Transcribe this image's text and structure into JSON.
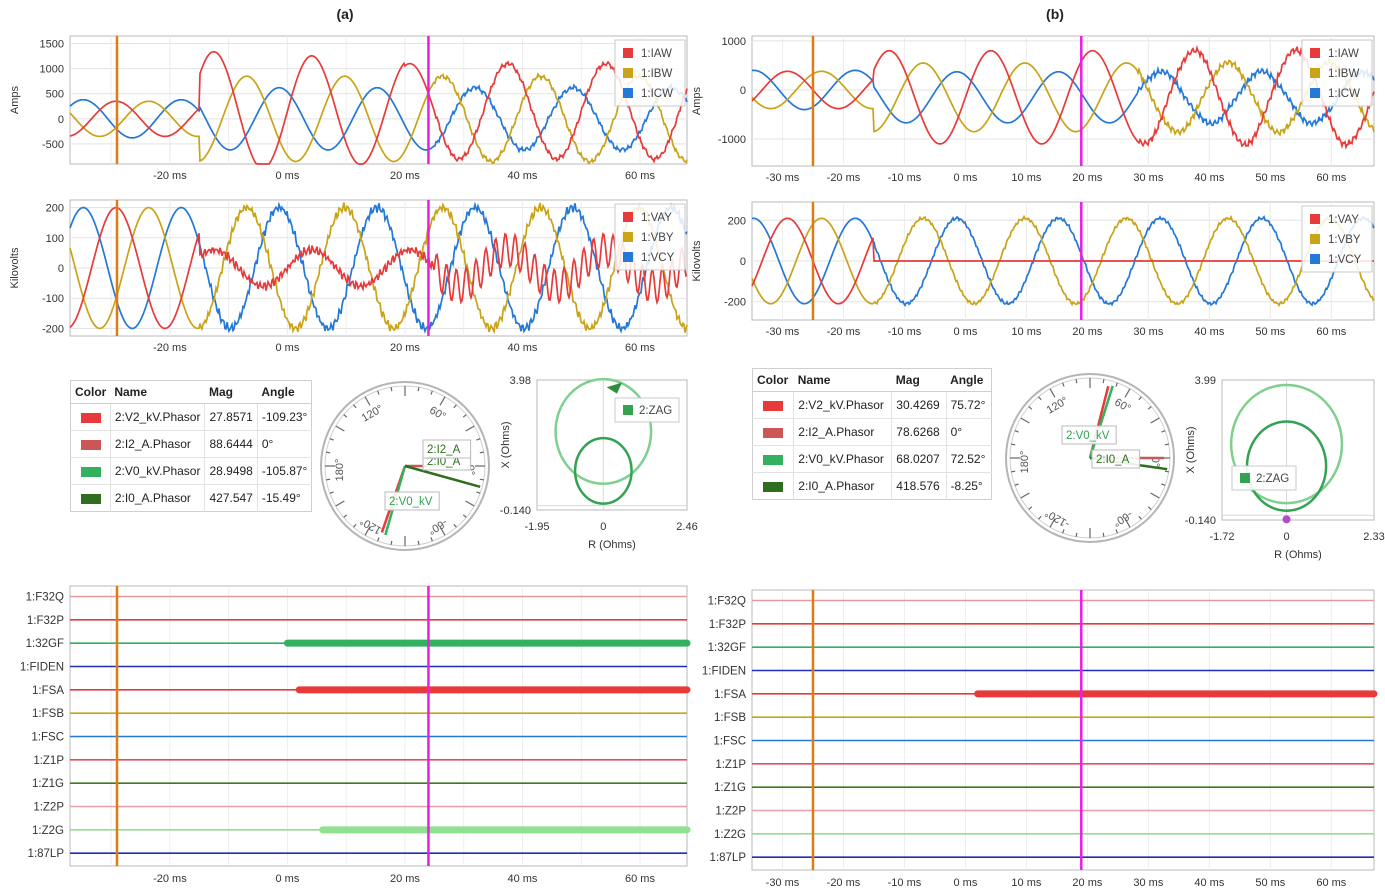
{
  "panels": [
    {
      "title": "(a)",
      "current_chart": {
        "type": "line",
        "ylabel": "Amps",
        "x_ticks": [
          "-20 ms",
          "0 ms",
          "20 ms",
          "40 ms",
          "60 ms"
        ],
        "y_ticks": [
          "1500",
          "1000",
          "500",
          "0",
          "-500"
        ],
        "legend": [
          "1:IAW",
          "1:IBW",
          "1:ICW"
        ],
        "xlim_ms": [
          -37,
          68
        ],
        "ylim": [
          -900,
          1650
        ]
      },
      "voltage_chart": {
        "type": "line",
        "ylabel": "Kilovolts",
        "x_ticks": [
          "-20 ms",
          "0 ms",
          "20 ms",
          "40 ms",
          "60 ms"
        ],
        "y_ticks": [
          "200",
          "100",
          "0",
          "-100",
          "-200"
        ],
        "legend": [
          "1:VAY",
          "1:VBY",
          "1:VCY"
        ],
        "xlim_ms": [
          -37,
          68
        ],
        "ylim": [
          -225,
          225
        ]
      },
      "phasor_table": {
        "headers": [
          "Color",
          "Name",
          "Mag",
          "Angle"
        ],
        "rows": [
          {
            "color": "#e83a3a",
            "name": "2:V2_kV.Phasor",
            "mag": "27.8571",
            "angle": "-109.23°"
          },
          {
            "color": "#cc5555",
            "name": "2:I2_A.Phasor",
            "mag": "88.6444",
            "angle": "0°"
          },
          {
            "color": "#33b15e",
            "name": "2:V0_kV.Phasor",
            "mag": "28.9498",
            "angle": "-105.87°"
          },
          {
            "color": "#2e6e1e",
            "name": "2:I0_A.Phasor",
            "mag": "427.547",
            "angle": "-15.49°"
          }
        ]
      },
      "polar": {
        "angle_labels": [
          "0°",
          "60°",
          "120°",
          "180°",
          "-120°",
          "-60°"
        ],
        "vector_labels": [
          "2:I0_A",
          "2:V0_kV",
          "2:I2_A"
        ]
      },
      "impedance": {
        "type": "scatter",
        "ylabel": "X (Ohms)",
        "xlabel": "R (Ohms)",
        "x_ticks": [
          "-1.95",
          "0",
          "2.46"
        ],
        "y_ticks": [
          "3.98",
          "-0.140"
        ],
        "legend": "2:ZAG",
        "xlim": [
          -1.95,
          2.46
        ],
        "ylim": [
          -0.14,
          3.98
        ],
        "legend_position": "top-right"
      },
      "digital": {
        "channels": [
          {
            "name": "1:F32Q",
            "color": "#e89a9a",
            "on": []
          },
          {
            "name": "1:F32P",
            "color": "#e83a3a",
            "on": []
          },
          {
            "name": "1:32GF",
            "color": "#33b15e",
            "on": [
              [
                0,
                68
              ]
            ]
          },
          {
            "name": "1:FIDEN",
            "color": "#1f2db5",
            "on": []
          },
          {
            "name": "1:FSA",
            "color": "#e83a3a",
            "on": [
              [
                2,
                68
              ]
            ]
          },
          {
            "name": "1:FSB",
            "color": "#c9a318",
            "on": []
          },
          {
            "name": "1:FSC",
            "color": "#2478d6",
            "on": []
          },
          {
            "name": "1:Z1P",
            "color": "#e0525a",
            "on": []
          },
          {
            "name": "1:Z1G",
            "color": "#3d7a1e",
            "on": []
          },
          {
            "name": "1:Z2P",
            "color": "#e8a0a8",
            "on": []
          },
          {
            "name": "1:Z2G",
            "color": "#8fe08f",
            "on": [
              [
                6,
                68
              ]
            ]
          },
          {
            "name": "1:87LP",
            "color": "#1f2db5",
            "on": []
          }
        ],
        "x_ticks": [
          "-20 ms",
          "0 ms",
          "20 ms",
          "40 ms",
          "60 ms"
        ]
      },
      "cursors": {
        "orange_ms": -29,
        "magenta_ms": 24
      }
    },
    {
      "title": "(b)",
      "current_chart": {
        "type": "line",
        "ylabel": "Amps",
        "x_ticks": [
          "-30 ms",
          "-20 ms",
          "-10 ms",
          "0 ms",
          "10 ms",
          "20 ms",
          "30 ms",
          "40 ms",
          "50 ms",
          "60 ms"
        ],
        "y_ticks": [
          "1000",
          "0",
          "-1000"
        ],
        "legend": [
          "1:IAW",
          "1:IBW",
          "1:ICW"
        ],
        "xlim_ms": [
          -35,
          67
        ],
        "ylim": [
          -1550,
          1100
        ]
      },
      "voltage_chart": {
        "type": "line",
        "ylabel": "Kilovolts",
        "x_ticks": [
          "-30 ms",
          "-20 ms",
          "-10 ms",
          "0 ms",
          "10 ms",
          "20 ms",
          "30 ms",
          "40 ms",
          "50 ms",
          "60 ms"
        ],
        "y_ticks": [
          "200",
          "0",
          "-200"
        ],
        "legend": [
          "1:VAY",
          "1:VBY",
          "1:VCY"
        ],
        "xlim_ms": [
          -35,
          67
        ],
        "ylim": [
          -290,
          290
        ]
      },
      "phasor_table": {
        "headers": [
          "Color",
          "Name",
          "Mag",
          "Angle"
        ],
        "rows": [
          {
            "color": "#e83a3a",
            "name": "2:V2_kV.Phasor",
            "mag": "30.4269",
            "angle": "75.72°"
          },
          {
            "color": "#cc5555",
            "name": "2:I2_A.Phasor",
            "mag": "78.6268",
            "angle": "0°"
          },
          {
            "color": "#33b15e",
            "name": "2:V0_kV.Phasor",
            "mag": "68.0207",
            "angle": "72.52°"
          },
          {
            "color": "#2e6e1e",
            "name": "2:I0_A.Phasor",
            "mag": "418.576",
            "angle": "-8.25°"
          }
        ]
      },
      "polar": {
        "angle_labels": [
          "0°",
          "60°",
          "120°",
          "180°",
          "-120°",
          "-60°"
        ],
        "vector_labels": [
          "2:V0_kV",
          "2:I0_A"
        ]
      },
      "impedance": {
        "type": "scatter",
        "ylabel": "X (Ohms)",
        "xlabel": "R (Ohms)",
        "x_ticks": [
          "-1.72",
          "0",
          "2.33"
        ],
        "y_ticks": [
          "3.99",
          "-0.140"
        ],
        "legend": "2:ZAG",
        "xlim": [
          -1.72,
          2.33
        ],
        "ylim": [
          -0.14,
          3.99
        ],
        "legend_position": "bottom-left"
      },
      "digital": {
        "channels": [
          {
            "name": "1:F32Q",
            "color": "#e89a9a",
            "on": []
          },
          {
            "name": "1:F32P",
            "color": "#e83a3a",
            "on": []
          },
          {
            "name": "1:32GF",
            "color": "#33b15e",
            "on": []
          },
          {
            "name": "1:FIDEN",
            "color": "#1f2db5",
            "on": []
          },
          {
            "name": "1:FSA",
            "color": "#e83a3a",
            "on": [
              [
                2,
                67
              ]
            ]
          },
          {
            "name": "1:FSB",
            "color": "#c9a318",
            "on": []
          },
          {
            "name": "1:FSC",
            "color": "#2478d6",
            "on": []
          },
          {
            "name": "1:Z1P",
            "color": "#e0525a",
            "on": []
          },
          {
            "name": "1:Z1G",
            "color": "#3d7a1e",
            "on": []
          },
          {
            "name": "1:Z2P",
            "color": "#e8a0a8",
            "on": []
          },
          {
            "name": "1:Z2G",
            "color": "#8fe08f",
            "on": []
          },
          {
            "name": "1:87LP",
            "color": "#1f2db5",
            "on": []
          }
        ],
        "x_ticks": [
          "-30 ms",
          "-20 ms",
          "-10 ms",
          "0 ms",
          "10 ms",
          "20 ms",
          "30 ms",
          "40 ms",
          "50 ms",
          "60 ms"
        ]
      },
      "cursors": {
        "orange_ms": -25,
        "magenta_ms": 19
      }
    }
  ],
  "colors": {
    "phaseA": "#e83a3a",
    "phaseB": "#c9a318",
    "phaseC": "#2478d6",
    "orange_cursor": "#e07b14",
    "magenta_cursor": "#e81ee0",
    "zag_outer": "#7fcf8f",
    "zag_inner": "#33a352"
  }
}
